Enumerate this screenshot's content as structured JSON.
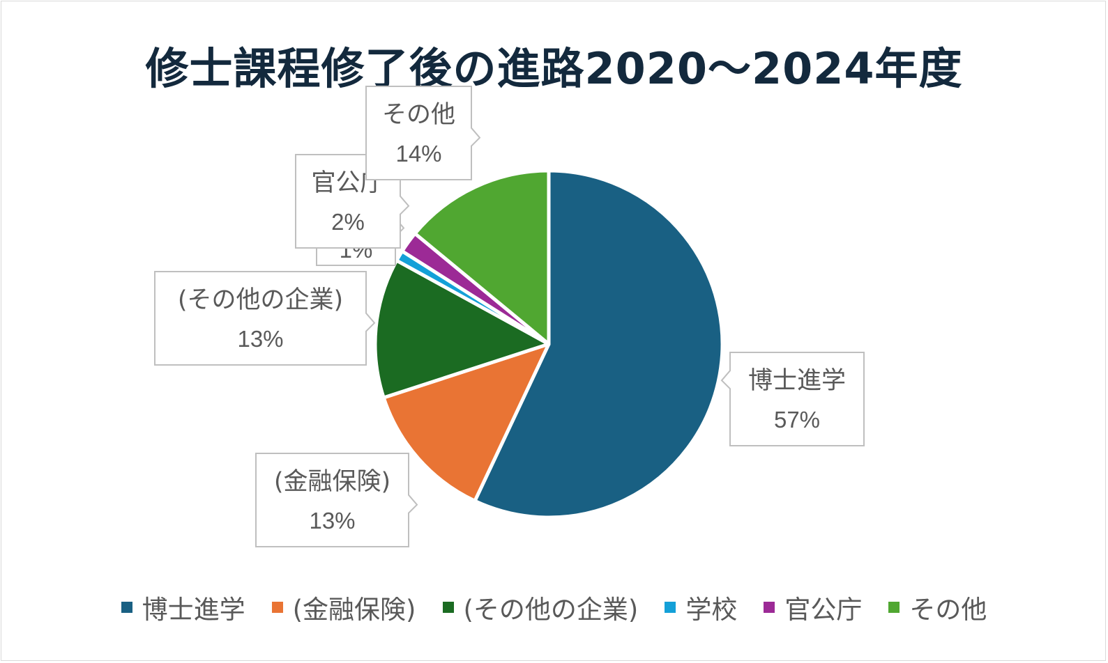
{
  "title": "修士課程修了後の進路2020～2024年度",
  "chart_data": {
    "type": "pie",
    "title": "修士課程修了後の進路2020～2024年度",
    "categories": [
      "博士進学",
      "(金融保険)",
      "(その他の企業)",
      "学校",
      "官公庁",
      "その他"
    ],
    "values": [
      57,
      13,
      13,
      1,
      2,
      14
    ],
    "labels": [
      "57%",
      "13%",
      "13%",
      "1%",
      "2%",
      "14%"
    ],
    "colors": [
      "#196083",
      "#e97434",
      "#1b6b22",
      "#14a0d8",
      "#9c2a96",
      "#50a731"
    ],
    "legend_position": "bottom"
  }
}
